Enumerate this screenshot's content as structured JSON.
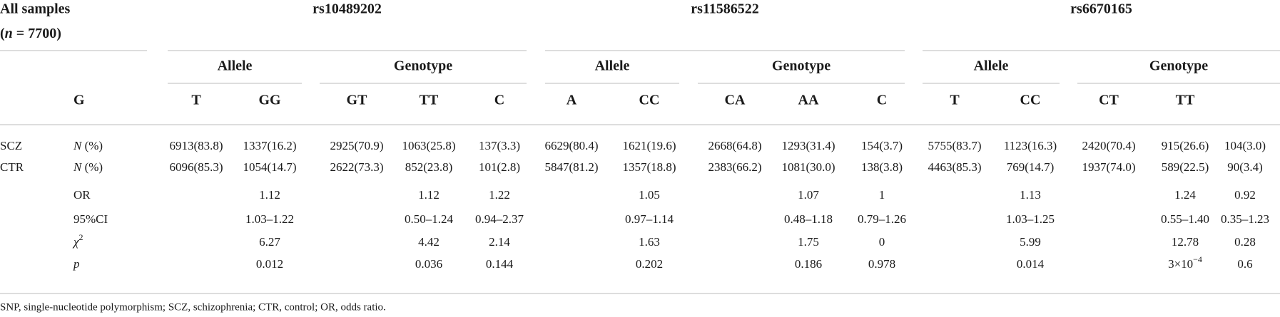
{
  "header": {
    "title": "All samples",
    "sample_size": {
      "open": "(",
      "italic": "n",
      "rest": " = 7700)"
    },
    "groups": [
      {
        "snp": "rs10489202",
        "subgroups": [
          "Allele",
          "Genotype"
        ]
      },
      {
        "snp": "rs11586522",
        "subgroups": [
          "Allele",
          "Genotype"
        ]
      },
      {
        "snp": "rs6670165",
        "subgroups": [
          "Allele",
          "Genotype"
        ]
      }
    ],
    "row_label_header": "G",
    "columns": [
      "T",
      "GG",
      "GT",
      "TT",
      "C",
      "A",
      "CC",
      "CA",
      "AA",
      "C",
      "T",
      "CC",
      "CT",
      "TT"
    ]
  },
  "rows": [
    {
      "group": "SCZ",
      "stat": {
        "italic": "N",
        "rest": " (%)"
      },
      "cells": [
        "6913(83.8)",
        "1337(16.2)",
        "2925(70.9)",
        "1063(25.8)",
        "137(3.3)",
        "6629(80.4)",
        "1621(19.6)",
        "2668(64.8)",
        "1293(31.4)",
        "154(3.7)",
        "5755(83.7)",
        "1123(16.3)",
        "2420(70.4)",
        "915(26.6)",
        "104(3.0)"
      ]
    },
    {
      "group": "CTR",
      "stat": {
        "italic": "N",
        "rest": " (%)"
      },
      "cells": [
        "6096(85.3)",
        "1054(14.7)",
        "2622(73.3)",
        "852(23.8)",
        "101(2.8)",
        "5847(81.2)",
        "1357(18.8)",
        "2383(66.2)",
        "1081(30.0)",
        "138(3.8)",
        "4463(85.3)",
        "769(14.7)",
        "1937(74.0)",
        "589(22.5)",
        "90(3.4)"
      ]
    },
    {
      "stat": "OR",
      "cells": [
        null,
        "1.12",
        null,
        "1.12",
        "1.22",
        null,
        "1.05",
        null,
        "1.07",
        "1",
        null,
        "1.13",
        null,
        "1.24",
        "0.92"
      ]
    },
    {
      "stat": "95%CI",
      "cells": [
        null,
        "1.03–1.22",
        null,
        "0.50–1.24",
        "0.94–2.37",
        null,
        "0.97–1.14",
        null,
        "0.48–1.18",
        "0.79–1.26",
        null,
        "1.03–1.25",
        null,
        "0.55–1.40",
        "0.35–1.23"
      ]
    },
    {
      "stat": {
        "italic": "χ",
        "sup": "2"
      },
      "cells": [
        null,
        "6.27",
        null,
        "4.42",
        "2.14",
        null,
        "1.63",
        null,
        "1.75",
        "0",
        null,
        "5.99",
        null,
        "12.78",
        "0.28"
      ]
    },
    {
      "stat": {
        "italic": "p"
      },
      "cells": [
        null,
        "0.012",
        null,
        "0.036",
        "0.144",
        null,
        "0.202",
        null,
        "0.186",
        "0.978",
        null,
        "0.014",
        null,
        {
          "base": "3×10",
          "exp": "−4"
        },
        "0.6"
      ]
    }
  ],
  "footnote": "SNP, single-nucleotide polymorphism; SCZ, schizophrenia; CTR, control; OR, odds ratio."
}
